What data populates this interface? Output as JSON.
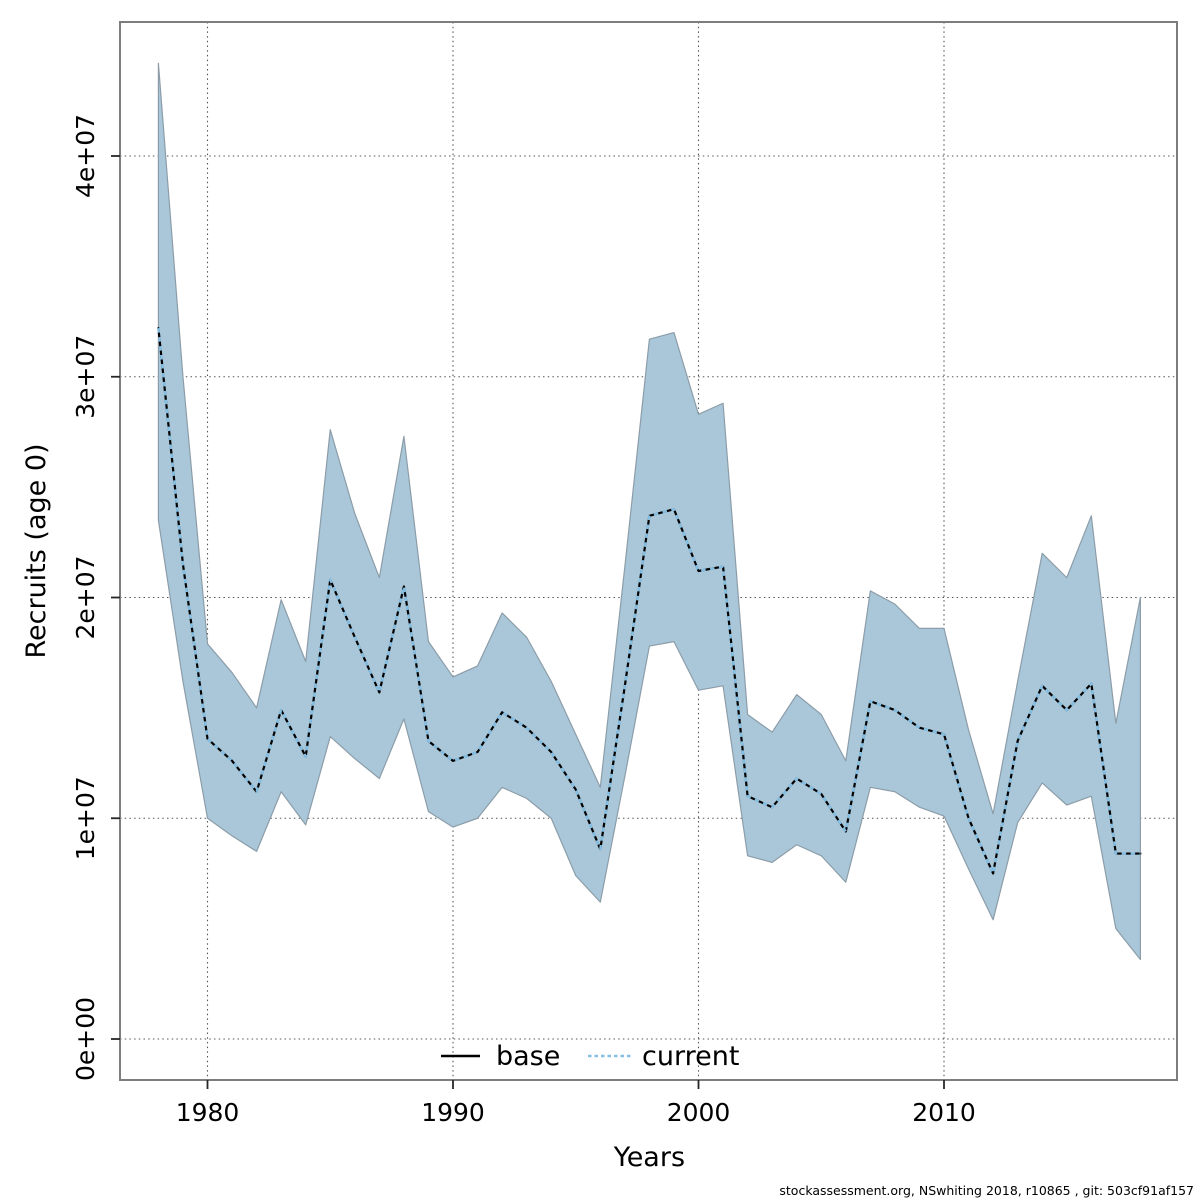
{
  "page": {
    "background": "#ffffff"
  },
  "chart_data": {
    "type": "line",
    "title": "",
    "xlabel": "Years",
    "ylabel": "Recruits (age 0)",
    "grid": "dotted, at decade years and every 1e7",
    "legend_position": "bottom-center-inside",
    "xlim": [
      1976.4,
      2019.5
    ],
    "ylim": [
      -1900000,
      46100000
    ],
    "x_tick_values": [
      1980,
      1990,
      2000,
      2010
    ],
    "x_tick_labels": [
      "1980",
      "1990",
      "2000",
      "2010"
    ],
    "y_tick_values": [
      0,
      10000000,
      20000000,
      30000000,
      40000000
    ],
    "y_tick_labels": [
      "0e+00",
      "1e+07",
      "2e+07",
      "3e+07",
      "4e+07"
    ],
    "x": [
      1978,
      1979,
      1980,
      1981,
      1982,
      1983,
      1984,
      1985,
      1986,
      1987,
      1988,
      1989,
      1990,
      1991,
      1992,
      1993,
      1994,
      1995,
      1996,
      1997,
      1998,
      1999,
      2000,
      2001,
      2002,
      2003,
      2004,
      2005,
      2006,
      2007,
      2008,
      2009,
      2010,
      2011,
      2012,
      2013,
      2014,
      2015,
      2016,
      2017,
      2018
    ],
    "series": [
      {
        "name": "base",
        "line_style": "solid",
        "color": "#000000",
        "values": [
          32200000,
          21500000,
          13600000,
          12600000,
          11200000,
          14900000,
          12800000,
          20800000,
          18200000,
          15700000,
          20500000,
          13500000,
          12600000,
          13000000,
          14800000,
          14100000,
          13000000,
          11300000,
          8600000,
          16000000,
          23700000,
          24000000,
          21200000,
          21400000,
          11000000,
          10500000,
          11800000,
          11100000,
          9400000,
          15300000,
          14900000,
          14100000,
          13800000,
          10000000,
          7500000,
          13500000,
          16000000,
          14900000,
          16100000,
          8400000,
          8400000
        ]
      },
      {
        "name": "current",
        "line_style": "dotted",
        "color": "#85bfe4",
        "values": [
          32200000,
          21500000,
          13600000,
          12600000,
          11200000,
          14900000,
          12800000,
          20800000,
          18200000,
          15700000,
          20500000,
          13500000,
          12600000,
          13000000,
          14800000,
          14100000,
          13000000,
          11300000,
          8600000,
          16000000,
          23700000,
          24000000,
          21200000,
          21400000,
          11000000,
          10500000,
          11800000,
          11100000,
          9400000,
          15300000,
          14900000,
          14100000,
          13800000,
          10000000,
          7500000,
          13500000,
          16000000,
          14900000,
          16100000,
          8400000,
          8400000
        ]
      }
    ],
    "band": {
      "name": "current confidence band",
      "fill": "#a9c7d8",
      "edge": "#8c9da9",
      "lower": [
        23500000,
        16200000,
        10000000,
        9200000,
        8500000,
        11200000,
        9700000,
        13700000,
        12700000,
        11800000,
        14500000,
        10300000,
        9600000,
        10000000,
        11400000,
        10900000,
        10000000,
        7400000,
        6200000,
        11900000,
        17800000,
        18000000,
        15800000,
        16000000,
        8300000,
        8000000,
        8800000,
        8300000,
        7100000,
        11400000,
        11200000,
        10500000,
        10100000,
        7700000,
        5400000,
        9800000,
        11600000,
        10600000,
        11000000,
        5000000,
        3600000
      ],
      "upper": [
        44200000,
        30000000,
        17900000,
        16600000,
        15000000,
        19900000,
        17100000,
        27600000,
        23800000,
        20900000,
        27300000,
        18000000,
        16400000,
        16900000,
        19300000,
        18200000,
        16200000,
        13800000,
        11400000,
        21400000,
        31700000,
        32000000,
        28300000,
        28800000,
        14700000,
        13900000,
        15600000,
        14700000,
        12600000,
        20300000,
        19700000,
        18600000,
        18600000,
        14000000,
        10200000,
        16200000,
        22000000,
        20900000,
        23700000,
        14300000,
        20000000
      ]
    }
  },
  "legend": {
    "items": [
      {
        "label": "base",
        "line_style": "solid",
        "color": "#000000"
      },
      {
        "label": "current",
        "line_style": "dotted",
        "color": "#85bfe4"
      }
    ]
  },
  "footer": {
    "text": "stockassessment.org, NSwhiting 2018, r10865 , git: 503cf91af157"
  },
  "colors": {
    "band_fill": "#a9c7d8",
    "band_edge": "#8c9da9",
    "base_line": "#000000",
    "current_line": "#85bfe4",
    "grid": "#565656",
    "box": "#7d7d7d",
    "tick": "#262626",
    "text": "#000000"
  }
}
